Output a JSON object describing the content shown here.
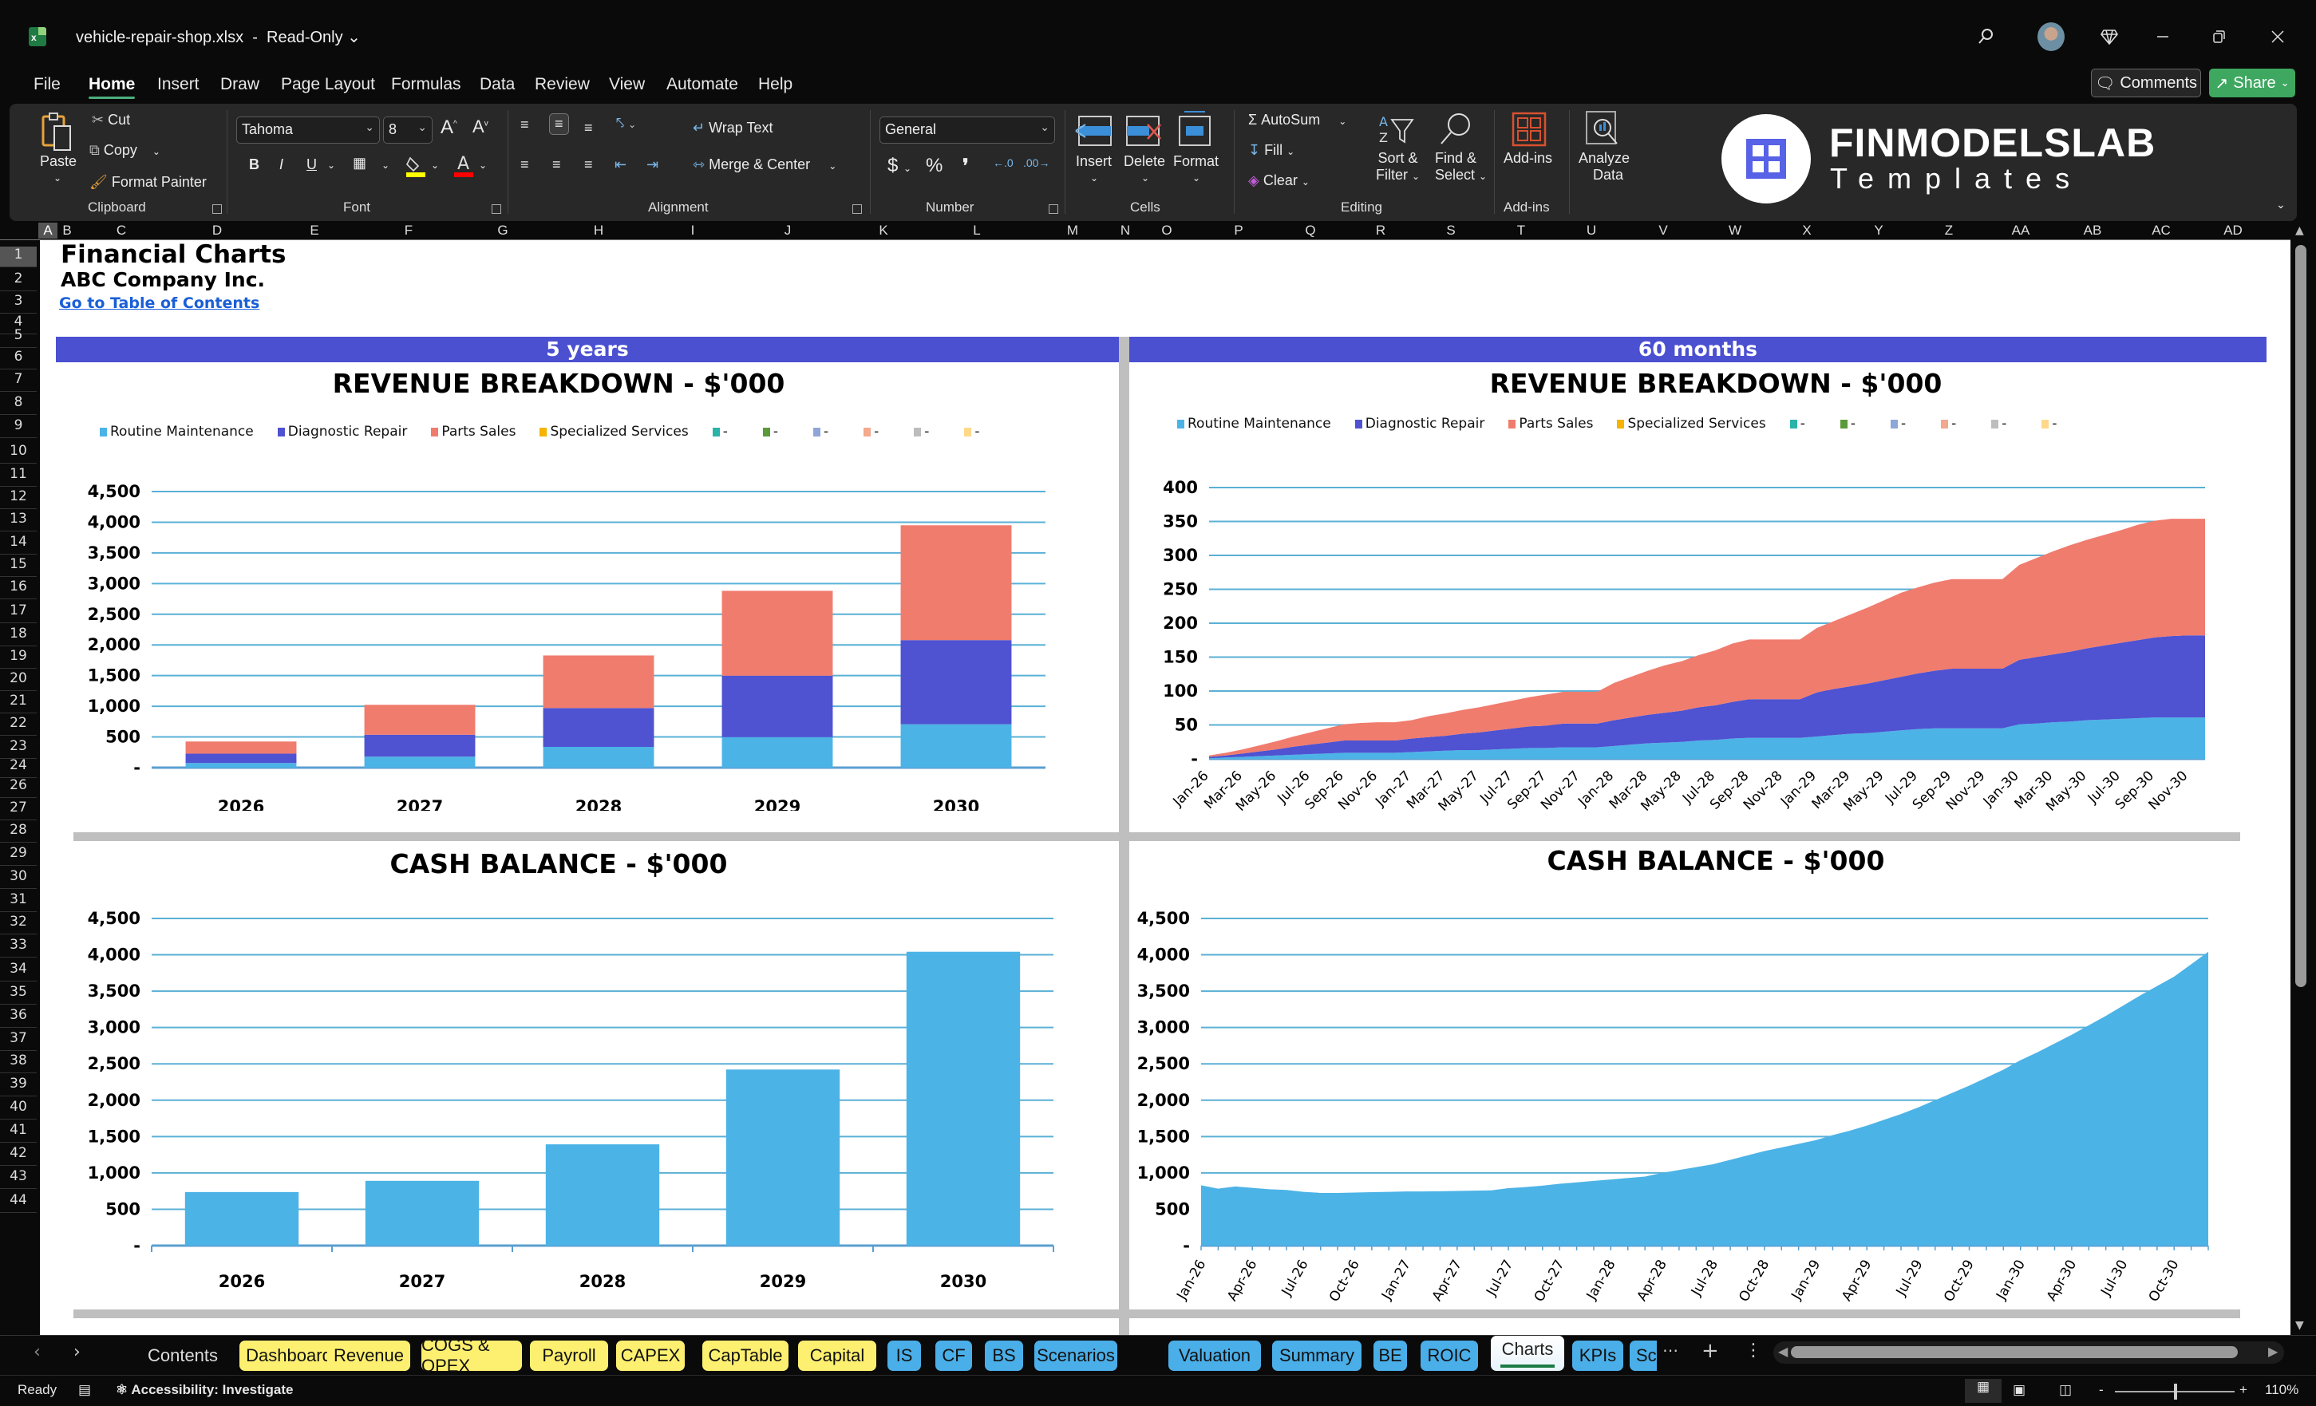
{
  "window": {
    "file_name": "vehicle-repair-shop.xlsx",
    "separator": "-",
    "mode": "Read-Only",
    "icons": [
      "search-icon",
      "avatar",
      "diamond-icon",
      "minimize-icon",
      "restore-icon",
      "close-icon"
    ]
  },
  "menu": {
    "tabs": [
      "File",
      "Home",
      "Insert",
      "Draw",
      "Page Layout",
      "Formulas",
      "Data",
      "Review",
      "View",
      "Automate",
      "Help"
    ],
    "active": "Home",
    "comments_label": "Comments",
    "share_label": "Share"
  },
  "ribbon": {
    "clipboard": {
      "paste": "Paste",
      "cut": "Cut",
      "copy": "Copy",
      "format_painter": "Format Painter",
      "group": "Clipboard"
    },
    "font": {
      "name": "Tahoma",
      "size": "8",
      "bold": "B",
      "italic": "I",
      "underline": "U",
      "group": "Font",
      "fill_color": "#ffff00",
      "font_color": "#ff0000"
    },
    "alignment": {
      "wrap_text": "Wrap Text",
      "merge_center": "Merge & Center",
      "group": "Alignment"
    },
    "number": {
      "format": "General",
      "currency": "$",
      "percent": "%",
      "comma": "9",
      "group": "Number"
    },
    "cells": {
      "insert": "Insert",
      "delete": "Delete",
      "format": "Format",
      "group": "Cells"
    },
    "editing": {
      "autosum": "AutoSum",
      "fill": "Fill",
      "clear": "Clear",
      "sort_filter_1": "Sort &",
      "sort_filter_2": "Filter",
      "find_select_1": "Find &",
      "find_select_2": "Select",
      "group": "Editing"
    },
    "addins": {
      "addins": "Add-ins",
      "group": "Add-ins"
    },
    "analyze": {
      "line1": "Analyze",
      "line2": "Data"
    },
    "logo": {
      "name": "FINMODELSLAB",
      "sub": "Templates",
      "color": "#5762e6"
    }
  },
  "grid": {
    "columns": [
      "A",
      "B",
      "C",
      "D",
      "E",
      "F",
      "G",
      "H",
      "I",
      "J",
      "K",
      "L",
      "M",
      "N",
      "O",
      "P",
      "Q",
      "R",
      "S",
      "T",
      "U",
      "V",
      "W",
      "X",
      "Y",
      "Z",
      "AA",
      "AB",
      "AC",
      "AD"
    ],
    "rows": [
      "1",
      "2",
      "3",
      "4",
      "5",
      "6",
      "7",
      "8",
      "9",
      "10",
      "11",
      "12",
      "13",
      "14",
      "15",
      "16",
      "17",
      "18",
      "19",
      "20",
      "21",
      "22",
      "23",
      "24",
      "26",
      "27",
      "28",
      "29",
      "30",
      "31",
      "32",
      "33",
      "34",
      "35",
      "36",
      "37",
      "38",
      "39",
      "40",
      "41",
      "42",
      "43",
      "44"
    ]
  },
  "sheet": {
    "title": "Financial Charts",
    "company": "ABC Company Inc.",
    "toc_link": "Go to Table of Contents",
    "band_left": "5 years",
    "band_right": "60 months",
    "band_color": "#4b50d1"
  },
  "legend": [
    {
      "label": "Routine Maintenance",
      "color": "#4cb3e6"
    },
    {
      "label": "Diagnostic Repair",
      "color": "#4f52d1"
    },
    {
      "label": "Parts Sales",
      "color": "#f07c6e"
    },
    {
      "label": "Specialized Services",
      "color": "#f5b400"
    },
    {
      "label": "-",
      "color": "#2ab3a8"
    },
    {
      "label": "-",
      "color": "#5a9a3a"
    },
    {
      "label": "-",
      "color": "#8fa6d8"
    },
    {
      "label": "-",
      "color": "#f2a98e"
    },
    {
      "label": "-",
      "color": "#bdbdbd"
    },
    {
      "label": "-",
      "color": "#ffd88a"
    }
  ],
  "chart_data": [
    {
      "id": "revenue_yearly",
      "type": "bar",
      "stacked": true,
      "title": "REVENUE BREAKDOWN - $'000",
      "categories": [
        "2026",
        "2027",
        "2028",
        "2029",
        "2030"
      ],
      "series": [
        {
          "name": "Routine Maintenance",
          "values": [
            75,
            180,
            338,
            497,
            707
          ]
        },
        {
          "name": "Diagnostic Repair",
          "values": [
            153,
            356,
            633,
            1001,
            1371
          ]
        },
        {
          "name": "Parts Sales",
          "values": [
            198,
            488,
            857,
            1384,
            1872
          ]
        },
        {
          "name": "Specialized Services",
          "values": [
            0,
            0,
            0,
            0,
            0
          ]
        }
      ],
      "ylim": [
        0,
        4500
      ],
      "yticks": [
        "-",
        "500",
        "1,000",
        "1,500",
        "2,000",
        "2,500",
        "3,000",
        "3,500",
        "4,000",
        "4,500"
      ],
      "grid": true,
      "legend_position": "top"
    },
    {
      "id": "revenue_monthly",
      "type": "area",
      "stacked": true,
      "title": "REVENUE BREAKDOWN - $'000",
      "x_labels_shown": [
        "Jan-26",
        "Mar-26",
        "May-26",
        "Jul-26",
        "Sep-26",
        "Nov-26",
        "Jan-27",
        "Mar-27",
        "May-27",
        "Jul-27",
        "Sep-27",
        "Nov-27",
        "Jan-28",
        "Mar-28",
        "May-28",
        "Jul-28",
        "Sep-28",
        "Nov-28",
        "Jan-29",
        "Mar-29",
        "May-29",
        "Jul-29",
        "Sep-29",
        "Nov-29",
        "Jan-30",
        "Mar-30",
        "May-30",
        "Jul-30",
        "Sep-30",
        "Nov-30"
      ],
      "months": 60,
      "series": [
        {
          "name": "Routine Maintenance",
          "values": [
            1,
            2,
            3,
            4,
            5,
            6,
            7,
            8,
            9,
            9,
            9,
            9,
            10,
            11,
            12,
            13,
            13,
            14,
            15,
            16,
            16,
            17,
            17,
            17,
            19,
            21,
            23,
            24,
            25,
            27,
            28,
            30,
            31,
            31,
            31,
            31,
            33,
            35,
            37,
            38,
            40,
            42,
            44,
            45,
            45,
            45,
            45,
            45,
            51,
            52,
            54,
            55,
            57,
            58,
            59,
            60,
            61,
            61,
            61,
            61
          ]
        },
        {
          "name": "Diagnostic Repair",
          "values": [
            2,
            3,
            5,
            7,
            9,
            12,
            14,
            16,
            18,
            18,
            18,
            18,
            20,
            21,
            22,
            24,
            26,
            28,
            30,
            32,
            33,
            35,
            35,
            35,
            38,
            40,
            42,
            44,
            46,
            49,
            51,
            54,
            57,
            57,
            57,
            57,
            65,
            68,
            70,
            73,
            76,
            79,
            82,
            85,
            88,
            88,
            88,
            88,
            95,
            98,
            100,
            103,
            106,
            109,
            112,
            115,
            118,
            120,
            121,
            121
          ]
        },
        {
          "name": "Parts Sales",
          "values": [
            2,
            4,
            6,
            9,
            12,
            15,
            18,
            21,
            24,
            26,
            27,
            27,
            27,
            31,
            33,
            35,
            37,
            39,
            41,
            43,
            46,
            47,
            47,
            47,
            55,
            60,
            65,
            70,
            73,
            77,
            81,
            86,
            88,
            88,
            88,
            88,
            95,
            100,
            106,
            112,
            118,
            124,
            127,
            130,
            132,
            132,
            132,
            132,
            140,
            146,
            152,
            157,
            160,
            163,
            166,
            170,
            172,
            173,
            172,
            172
          ]
        },
        {
          "name": "Specialized Services",
          "values": [
            0,
            0,
            0,
            0,
            0,
            0,
            0,
            0,
            0,
            0,
            0,
            0,
            0,
            0,
            0,
            0,
            0,
            0,
            0,
            0,
            0,
            0,
            0,
            0,
            0,
            0,
            0,
            0,
            0,
            0,
            0,
            0,
            0,
            0,
            0,
            0,
            0,
            0,
            0,
            0,
            0,
            0,
            0,
            0,
            0,
            0,
            0,
            0,
            0,
            0,
            0,
            0,
            0,
            0,
            0,
            0,
            0,
            0,
            0,
            0
          ]
        }
      ],
      "ylim": [
        0,
        400
      ],
      "yticks": [
        "-",
        "50",
        "100",
        "150",
        "200",
        "250",
        "300",
        "350",
        "400"
      ],
      "grid": true,
      "legend_position": "top"
    },
    {
      "id": "cash_yearly",
      "type": "bar",
      "title": "CASH BALANCE - $'000",
      "categories": [
        "2026",
        "2027",
        "2028",
        "2029",
        "2030"
      ],
      "values": [
        737,
        891,
        1393,
        2422,
        4042
      ],
      "ylim": [
        0,
        4500
      ],
      "yticks": [
        "-",
        "500",
        "1,000",
        "1,500",
        "2,000",
        "2,500",
        "3,000",
        "3,500",
        "4,000",
        "4,500"
      ],
      "grid": true
    },
    {
      "id": "cash_monthly",
      "type": "area",
      "title": "CASH BALANCE - $'000",
      "x_labels_shown": [
        "Jan-26",
        "Apr-26",
        "Jul-26",
        "Oct-26",
        "Jan-27",
        "Apr-27",
        "Jul-27",
        "Oct-27",
        "Jan-28",
        "Apr-28",
        "Jul-28",
        "Oct-28",
        "Jan-29",
        "Apr-29",
        "Jul-29",
        "Oct-29",
        "Jan-30",
        "Apr-30",
        "Jul-30",
        "Oct-30"
      ],
      "months": 60,
      "values": [
        830,
        783,
        813,
        795,
        775,
        765,
        740,
        725,
        725,
        730,
        735,
        740,
        745,
        745,
        748,
        752,
        756,
        760,
        790,
        805,
        825,
        850,
        870,
        890,
        910,
        930,
        950,
        1000,
        1040,
        1080,
        1120,
        1180,
        1240,
        1300,
        1350,
        1400,
        1450,
        1520,
        1580,
        1650,
        1730,
        1810,
        1900,
        2000,
        2100,
        2200,
        2310,
        2420,
        2550,
        2660,
        2780,
        2900,
        3030,
        3160,
        3300,
        3440,
        3570,
        3700,
        3870,
        4042
      ],
      "ylim": [
        0,
        4500
      ],
      "yticks": [
        "-",
        "500",
        "1,000",
        "1,500",
        "2,000",
        "2,500",
        "3,000",
        "3,500",
        "4,000",
        "4,500"
      ],
      "grid": true
    }
  ],
  "sheet_tabs": [
    {
      "label": "Contents",
      "style": "plain"
    },
    {
      "label": "Dashboard",
      "style": "yellow"
    },
    {
      "label": "Revenue",
      "style": "yellow"
    },
    {
      "label": "COGS & OPEX",
      "style": "yellow"
    },
    {
      "label": "Payroll",
      "style": "yellow"
    },
    {
      "label": "CAPEX",
      "style": "yellow"
    },
    {
      "label": "CapTable",
      "style": "yellow"
    },
    {
      "label": "Capital",
      "style": "yellow"
    },
    {
      "label": "IS",
      "style": "blue"
    },
    {
      "label": "CF",
      "style": "blue"
    },
    {
      "label": "BS",
      "style": "blue"
    },
    {
      "label": "Scenarios",
      "style": "blue"
    },
    {
      "label": "Valuation",
      "style": "blue"
    },
    {
      "label": "Summary",
      "style": "blue"
    },
    {
      "label": "BE",
      "style": "blue"
    },
    {
      "label": "ROIC",
      "style": "blue"
    },
    {
      "label": "Charts",
      "style": "active"
    },
    {
      "label": "KPIs",
      "style": "blue"
    },
    {
      "label": "Sc",
      "style": "blue"
    }
  ],
  "status": {
    "ready": "Ready",
    "accessibility": "Accessibility: Investigate",
    "zoom": "110%",
    "zoom_minus": "-",
    "zoom_plus": "+"
  }
}
